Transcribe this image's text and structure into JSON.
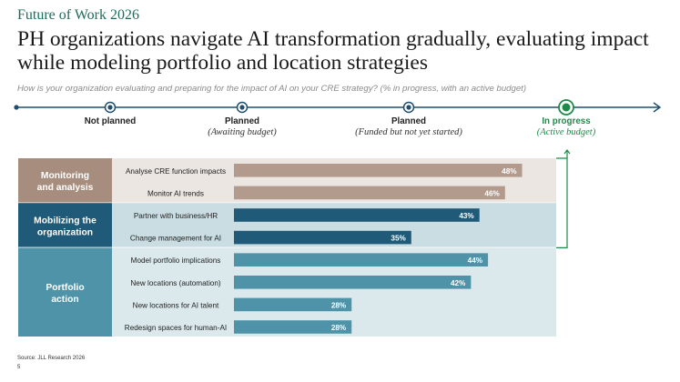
{
  "header": {
    "eyebrow": "Future of Work 2026",
    "title": "PH organizations navigate AI transformation gradually, evaluating impact while modeling portfolio and location strategies",
    "subtitle": "How is your organization evaluating and preparing for the impact of AI on your CRE strategy? (% in progress, with an active budget)"
  },
  "timeline": {
    "stages": [
      {
        "label": "Not planned",
        "sub": ""
      },
      {
        "label": "Planned",
        "sub": "(Awaiting budget)"
      },
      {
        "label": "Planned",
        "sub": "(Funded but not yet started)"
      },
      {
        "label": "In progress",
        "sub": "(Active budget)"
      }
    ],
    "line_color": "#1f4e6e",
    "active_color": "#1e8a4a"
  },
  "chart_data": {
    "type": "bar",
    "orientation": "horizontal",
    "value_unit": "%",
    "groups": [
      {
        "name": "Monitoring and analysis",
        "label_color": "#a78d7e",
        "band_color": "#ebe6e2",
        "bar_color": "#b29a8c",
        "categories": [
          "Analyse CRE function impacts",
          "Monitor AI trends"
        ],
        "values": [
          48,
          46
        ]
      },
      {
        "name": "Mobilizing the organization",
        "label_color": "#1f5a78",
        "band_color": "#c9dde3",
        "bar_color": "#1f5a78",
        "categories": [
          "Partner with business/HR",
          "Change management for AI"
        ],
        "values": [
          43,
          35
        ]
      },
      {
        "name": "Portfolio action",
        "label_color": "#4f93a8",
        "band_color": "#dbe9ed",
        "bar_color": "#4f93a8",
        "categories": [
          "Model portfolio implications",
          "New locations (automation)",
          "New locations for AI talent",
          "Redesign spaces for human-AI"
        ],
        "values": [
          44,
          42,
          28,
          28
        ]
      }
    ],
    "xlim": [
      0,
      60
    ],
    "grid": false,
    "legend": "none"
  },
  "footer": {
    "source": "Source: JLL Research 2026",
    "page": "5"
  }
}
